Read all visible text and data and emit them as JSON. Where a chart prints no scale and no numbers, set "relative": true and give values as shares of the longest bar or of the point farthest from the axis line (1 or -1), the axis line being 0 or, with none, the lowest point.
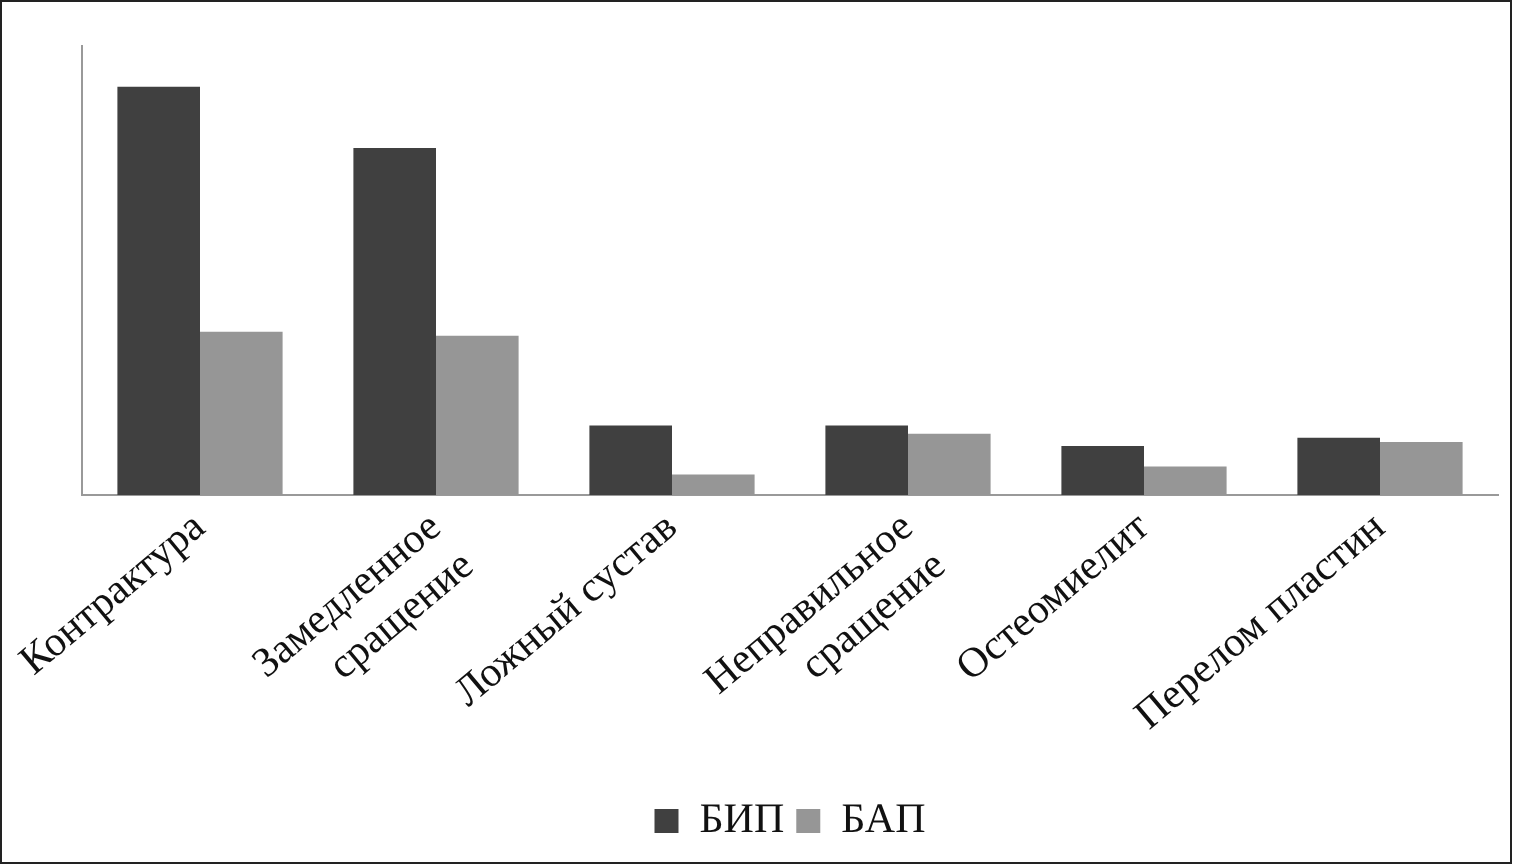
{
  "chart_data": {
    "type": "bar",
    "relative": true,
    "categories": [
      "Контрактура",
      "Замедленное сращение",
      "Ложный сустав",
      "Неправильное сращение",
      "Остеомиелит",
      "Перелом пластин"
    ],
    "series": [
      {
        "name": "БИП",
        "color": "#404040",
        "values": [
          1,
          0.85,
          0.17,
          0.17,
          0.12,
          0.14
        ]
      },
      {
        "name": "БАП",
        "color": "#969696",
        "values": [
          0.4,
          0.39,
          0.05,
          0.15,
          0.07,
          0.13
        ]
      }
    ],
    "grid": false,
    "legend": "bottom"
  }
}
